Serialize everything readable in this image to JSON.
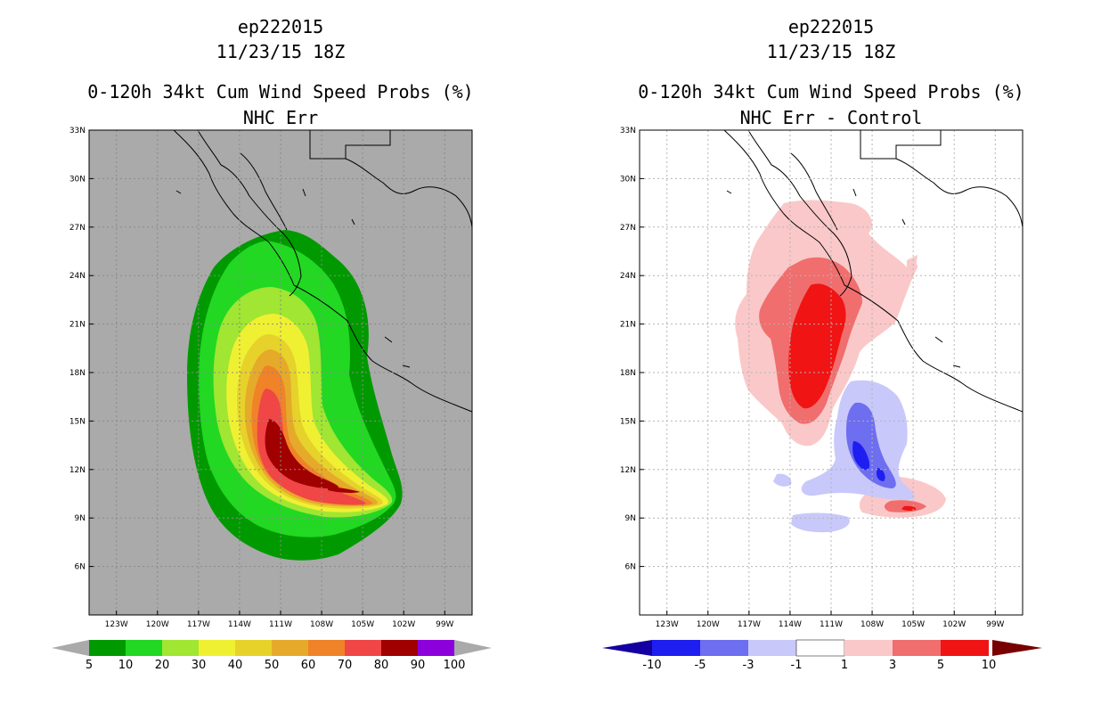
{
  "panels": [
    {
      "id": "left",
      "title_line1": "ep222015",
      "title_line2": "11/23/15 18Z",
      "title_line3": "0-120h 34kt Cum Wind Speed Probs (%)",
      "subtitle": "NHC Err"
    },
    {
      "id": "right",
      "title_line1": "ep222015",
      "title_line2": "11/23/15 18Z",
      "title_line3": "0-120h 34kt Cum Wind Speed Probs (%)",
      "subtitle": "NHC Err - Control"
    }
  ],
  "colors": {
    "ocean_grey": "#aaaaaa",
    "prob_scale": [
      "#009a00",
      "#22d822",
      "#a0e632",
      "#f0f032",
      "#e6d22a",
      "#e6aa2a",
      "#f08228",
      "#f04646",
      "#a00000",
      "#8c00dc"
    ],
    "diff_scale": [
      "#1400a0",
      "#1e1ef0",
      "#6e6ef0",
      "#c8c8fa",
      "#ffffff",
      "#fac8c8",
      "#f06e6e",
      "#f01414",
      "#780000"
    ]
  },
  "chart_data": [
    {
      "type": "heatmap",
      "title": "0-120h 34kt Cum Wind Speed Probs (%)",
      "subtitle": "NHC Err",
      "x_ticks": [
        "123W",
        "120W",
        "117W",
        "114W",
        "111W",
        "108W",
        "105W",
        "102W",
        "99W"
      ],
      "y_ticks": [
        "33N",
        "30N",
        "27N",
        "24N",
        "21N",
        "18N",
        "15N",
        "12N",
        "9N",
        "6N"
      ],
      "xlim_deg_w": [
        125,
        97
      ],
      "ylim_deg_n": [
        3,
        33
      ],
      "colorbar_labels": [
        "5",
        "10",
        "20",
        "30",
        "40",
        "50",
        "60",
        "70",
        "80",
        "90",
        "100"
      ],
      "contour_levels": [
        5,
        10,
        20,
        30,
        40,
        50,
        60,
        70,
        80,
        90
      ],
      "max_center": {
        "lon_w": 109.5,
        "lat_n": 13.0,
        "value": 90
      }
    },
    {
      "type": "heatmap",
      "title": "0-120h 34kt Cum Wind Speed Probs (%)",
      "subtitle": "NHC Err - Control",
      "x_ticks": [
        "123W",
        "120W",
        "117W",
        "114W",
        "111W",
        "108W",
        "105W",
        "102W",
        "99W"
      ],
      "y_ticks": [
        "33N",
        "30N",
        "27N",
        "24N",
        "21N",
        "18N",
        "15N",
        "12N",
        "9N",
        "6N"
      ],
      "xlim_deg_w": [
        125,
        97
      ],
      "ylim_deg_n": [
        3,
        33
      ],
      "colorbar_labels": [
        "-10",
        "-5",
        "-3",
        "-1",
        "1",
        "3",
        "5",
        "10"
      ],
      "positive_max": {
        "lon_w": 112.5,
        "lat_n": 19.5,
        "value": 10
      },
      "negative_min": {
        "lon_w": 108.5,
        "lat_n": 13.5,
        "value": -10
      }
    }
  ]
}
